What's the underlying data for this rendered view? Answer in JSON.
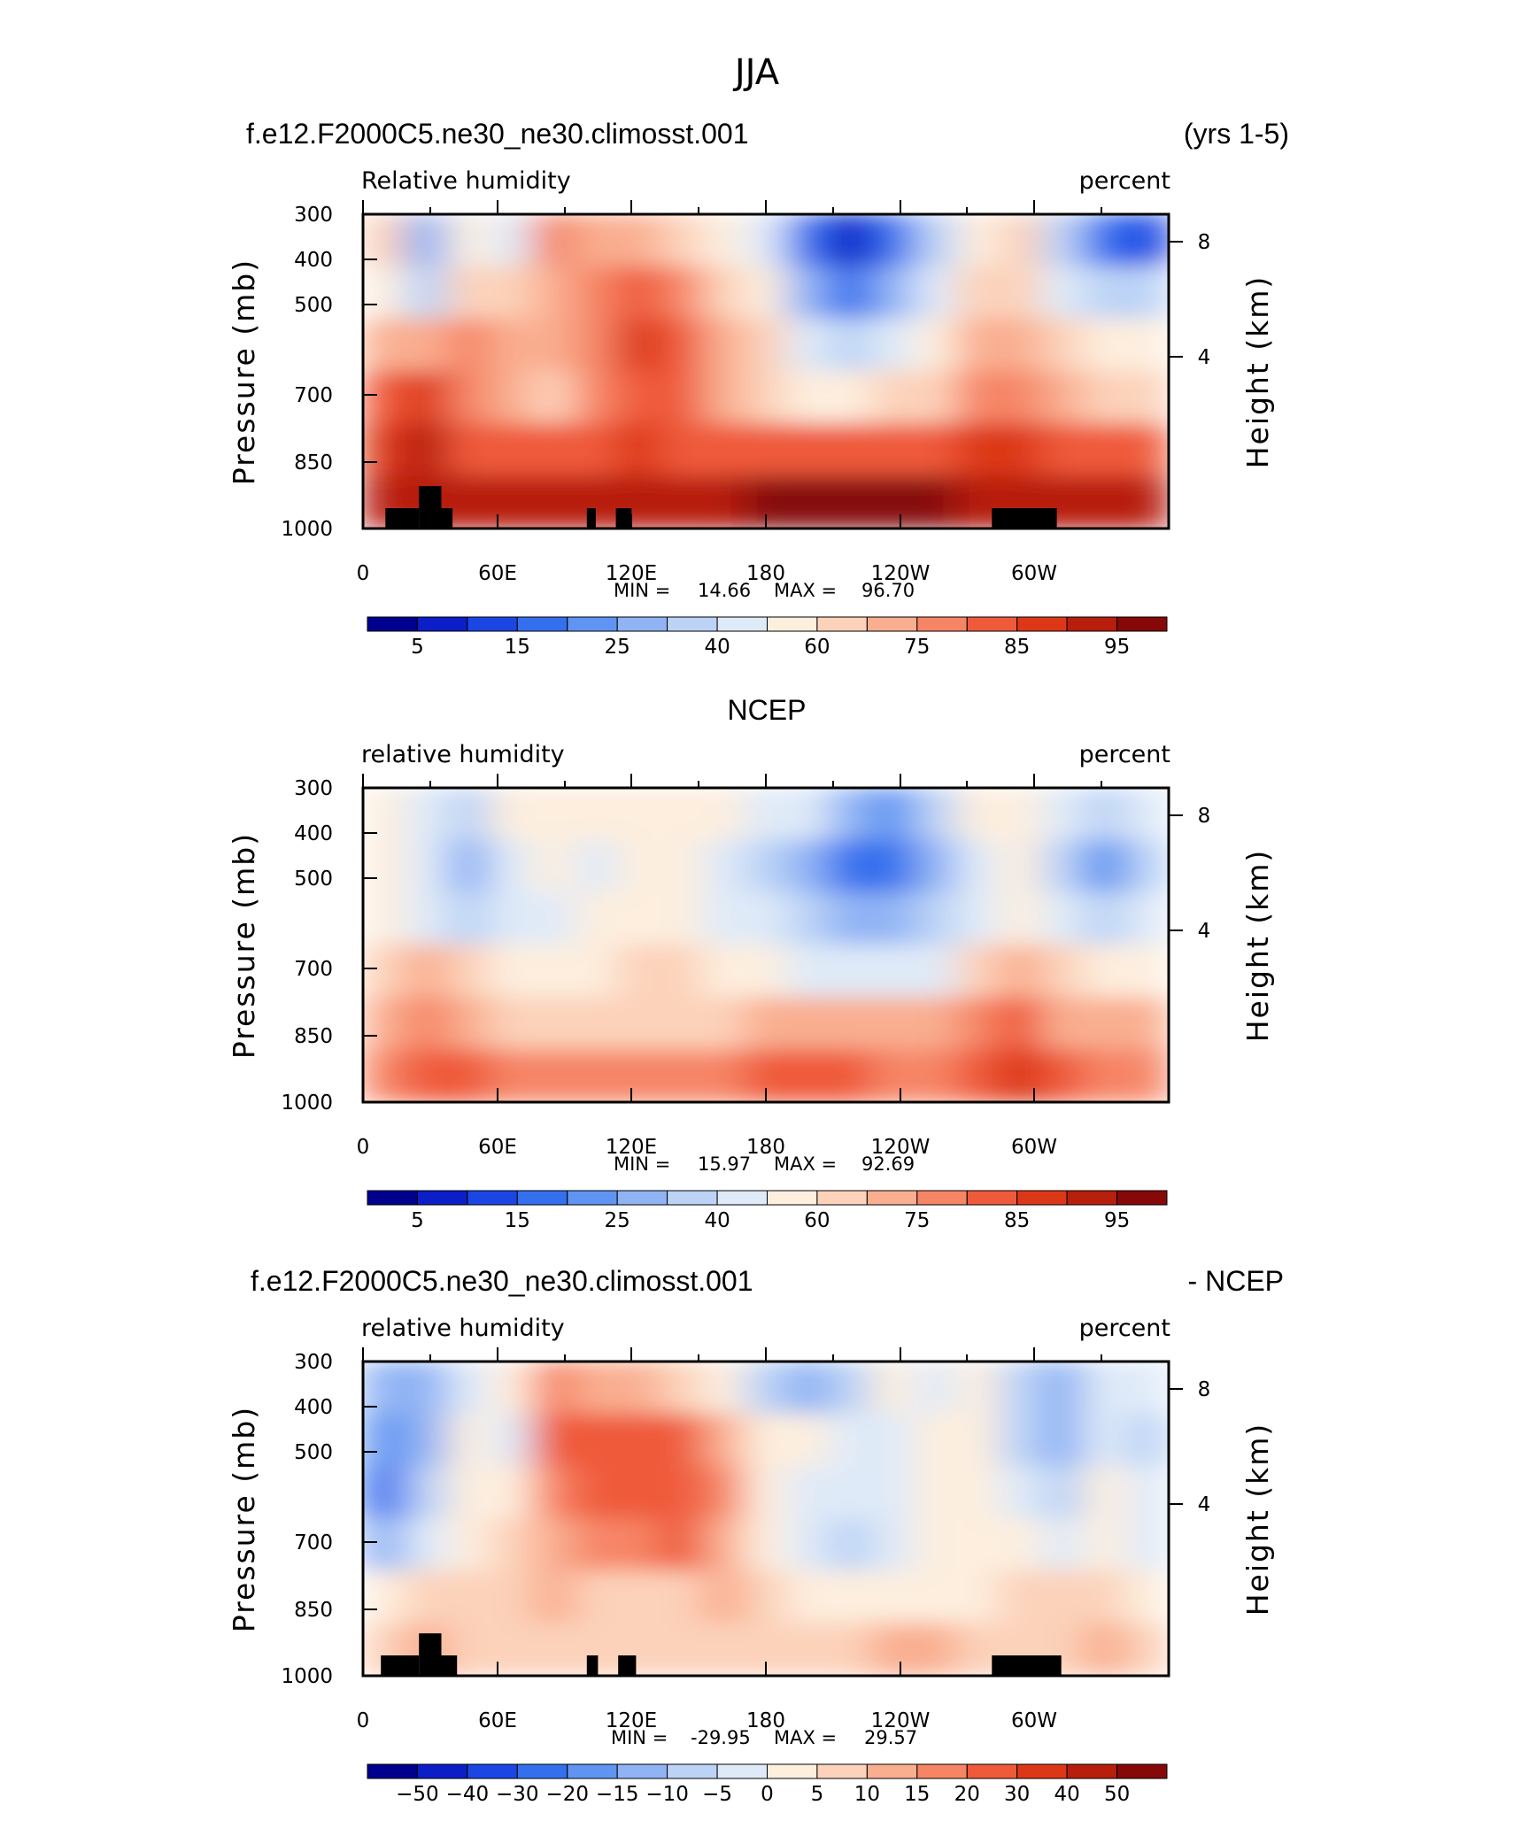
{
  "figure": {
    "title": "JJA"
  },
  "colors": {
    "levels": [
      "#00008e",
      "#0b1ec8",
      "#1c46e4",
      "#3470ee",
      "#5f94f2",
      "#90b3f4",
      "#bcd3f6",
      "#dfeaf8",
      "#fdeede",
      "#fcd2ba",
      "#f9ae90",
      "#f68566",
      "#ef5a3a",
      "#dc3818",
      "#b71e0c",
      "#860808"
    ],
    "land": "#000000"
  },
  "chart_data": [
    {
      "type": "heatmap",
      "title_left": "f.e12.F2000C5.ne30_ne30.climosst.001",
      "title_right": "(yrs 1-5)",
      "subtitle_left": "Relative humidity",
      "subtitle_right": "percent",
      "ylabel": "Pressure (mb)",
      "ylabel_right": "Height (km)",
      "xticks": [
        "0",
        "60E",
        "120E",
        "180",
        "120W",
        "60W"
      ],
      "yticks": [
        "300",
        "400",
        "500",
        "700",
        "850",
        "1000"
      ],
      "yticks_right": [
        "8",
        "4"
      ],
      "min_label": "MIN =",
      "min": "14.66",
      "max_label": "MAX =",
      "max": "96.70",
      "colorbar_labels": [
        "5",
        "15",
        "25",
        "40",
        "60",
        "75",
        "85",
        "95"
      ],
      "xlim": [
        0,
        360
      ],
      "ylim": [
        1000,
        300
      ],
      "field": [
        [
          9,
          5,
          8,
          7,
          11,
          10,
          10,
          9,
          8,
          7,
          3,
          1,
          3,
          6,
          8,
          9,
          6,
          3,
          2
        ],
        [
          8,
          6,
          9,
          9,
          10,
          11,
          12,
          11,
          9,
          8,
          5,
          3,
          5,
          7,
          9,
          9,
          7,
          6,
          6
        ],
        [
          10,
          10,
          11,
          10,
          10,
          11,
          13,
          12,
          10,
          9,
          7,
          6,
          7,
          8,
          10,
          10,
          9,
          8,
          8
        ],
        [
          12,
          13,
          11,
          10,
          9,
          11,
          12,
          12,
          10,
          9,
          8,
          8,
          9,
          9,
          11,
          11,
          10,
          9,
          9
        ],
        [
          13,
          14,
          12,
          12,
          12,
          12,
          13,
          12,
          12,
          12,
          12,
          12,
          12,
          12,
          13,
          13,
          12,
          12,
          12
        ],
        [
          14,
          14,
          14,
          14,
          14,
          14,
          14,
          14,
          14,
          15,
          15,
          15,
          15,
          15,
          14,
          14,
          14,
          14,
          14
        ]
      ],
      "land": [
        [
          10,
          25,
          1000,
          925
        ],
        [
          25,
          35,
          1000,
          850
        ],
        [
          35,
          40,
          1000,
          925
        ],
        [
          100,
          104,
          1000,
          925
        ],
        [
          113,
          120,
          1000,
          925
        ],
        [
          281,
          310,
          1000,
          925
        ]
      ]
    },
    {
      "type": "heatmap",
      "title_center": "NCEP",
      "subtitle_left": "relative humidity",
      "subtitle_right": "percent",
      "ylabel": "Pressure (mb)",
      "ylabel_right": "Height (km)",
      "xticks": [
        "0",
        "60E",
        "120E",
        "180",
        "120W",
        "60W"
      ],
      "yticks": [
        "300",
        "400",
        "500",
        "700",
        "850",
        "1000"
      ],
      "yticks_right": [
        "8",
        "4"
      ],
      "min_label": "MIN =",
      "min": "15.97",
      "max_label": "MAX =",
      "max": "92.69",
      "colorbar_labels": [
        "5",
        "15",
        "25",
        "40",
        "60",
        "75",
        "85",
        "95"
      ],
      "xlim": [
        0,
        360
      ],
      "ylim": [
        1000,
        300
      ],
      "field": [
        [
          8,
          7,
          6,
          8,
          8,
          8,
          8,
          8,
          8,
          7,
          7,
          5,
          4,
          6,
          8,
          8,
          7,
          6,
          7
        ],
        [
          8,
          7,
          5,
          7,
          8,
          7,
          8,
          8,
          7,
          6,
          5,
          3,
          3,
          5,
          7,
          8,
          6,
          4,
          6
        ],
        [
          8,
          7,
          6,
          7,
          7,
          8,
          8,
          8,
          7,
          7,
          6,
          5,
          5,
          6,
          7,
          8,
          7,
          6,
          7
        ],
        [
          9,
          10,
          9,
          8,
          8,
          8,
          9,
          9,
          8,
          8,
          7,
          7,
          7,
          7,
          9,
          10,
          9,
          8,
          8
        ],
        [
          10,
          11,
          10,
          9,
          9,
          9,
          9,
          9,
          9,
          10,
          10,
          10,
          10,
          10,
          11,
          12,
          10,
          10,
          10
        ],
        [
          11,
          12,
          12,
          11,
          11,
          11,
          11,
          11,
          11,
          12,
          12,
          12,
          11,
          11,
          12,
          13,
          12,
          11,
          11
        ]
      ],
      "land": []
    },
    {
      "type": "heatmap",
      "title_left": "f.e12.F2000C5.ne30_ne30.climosst.001",
      "title_right": "- NCEP",
      "subtitle_left": "relative humidity",
      "subtitle_right": "percent",
      "ylabel": "Pressure (mb)",
      "ylabel_right": "Height (km)",
      "xticks": [
        "0",
        "60E",
        "120E",
        "180",
        "120W",
        "60W"
      ],
      "yticks": [
        "300",
        "400",
        "500",
        "700",
        "850",
        "1000"
      ],
      "yticks_right": [
        "8",
        "4"
      ],
      "min_label": "MIN =",
      "min": "-29.95",
      "max_label": "MAX =",
      "max": "29.57",
      "colorbar_labels": [
        "-50",
        "-40",
        "-30",
        "-20",
        "-15",
        "-10",
        "-5",
        "0",
        "5",
        "10",
        "15",
        "20",
        "30",
        "40",
        "50"
      ],
      "xlim": [
        0,
        360
      ],
      "ylim": [
        1000,
        300
      ],
      "field": [
        [
          5,
          5,
          7,
          8,
          11,
          10,
          10,
          9,
          8,
          6,
          5,
          6,
          8,
          7,
          8,
          6,
          5,
          7,
          7
        ],
        [
          4,
          5,
          8,
          7,
          12,
          12,
          12,
          12,
          10,
          8,
          8,
          7,
          7,
          8,
          8,
          6,
          5,
          7,
          6
        ],
        [
          3,
          6,
          8,
          8,
          11,
          12,
          12,
          12,
          11,
          8,
          7,
          7,
          7,
          8,
          8,
          7,
          6,
          8,
          7
        ],
        [
          5,
          7,
          8,
          9,
          10,
          11,
          11,
          12,
          10,
          8,
          7,
          6,
          7,
          8,
          8,
          8,
          7,
          8,
          7
        ],
        [
          8,
          9,
          9,
          9,
          10,
          9,
          9,
          9,
          10,
          9,
          8,
          8,
          8,
          8,
          8,
          9,
          9,
          9,
          8
        ],
        [
          9,
          10,
          9,
          9,
          9,
          9,
          9,
          9,
          9,
          9,
          9,
          9,
          10,
          10,
          9,
          9,
          9,
          10,
          9
        ]
      ],
      "land": [
        [
          8,
          25,
          1000,
          925
        ],
        [
          25,
          35,
          1000,
          850
        ],
        [
          35,
          42,
          1000,
          925
        ],
        [
          100,
          105,
          1000,
          925
        ],
        [
          114,
          122,
          1000,
          925
        ],
        [
          281,
          312,
          1000,
          925
        ]
      ]
    }
  ]
}
